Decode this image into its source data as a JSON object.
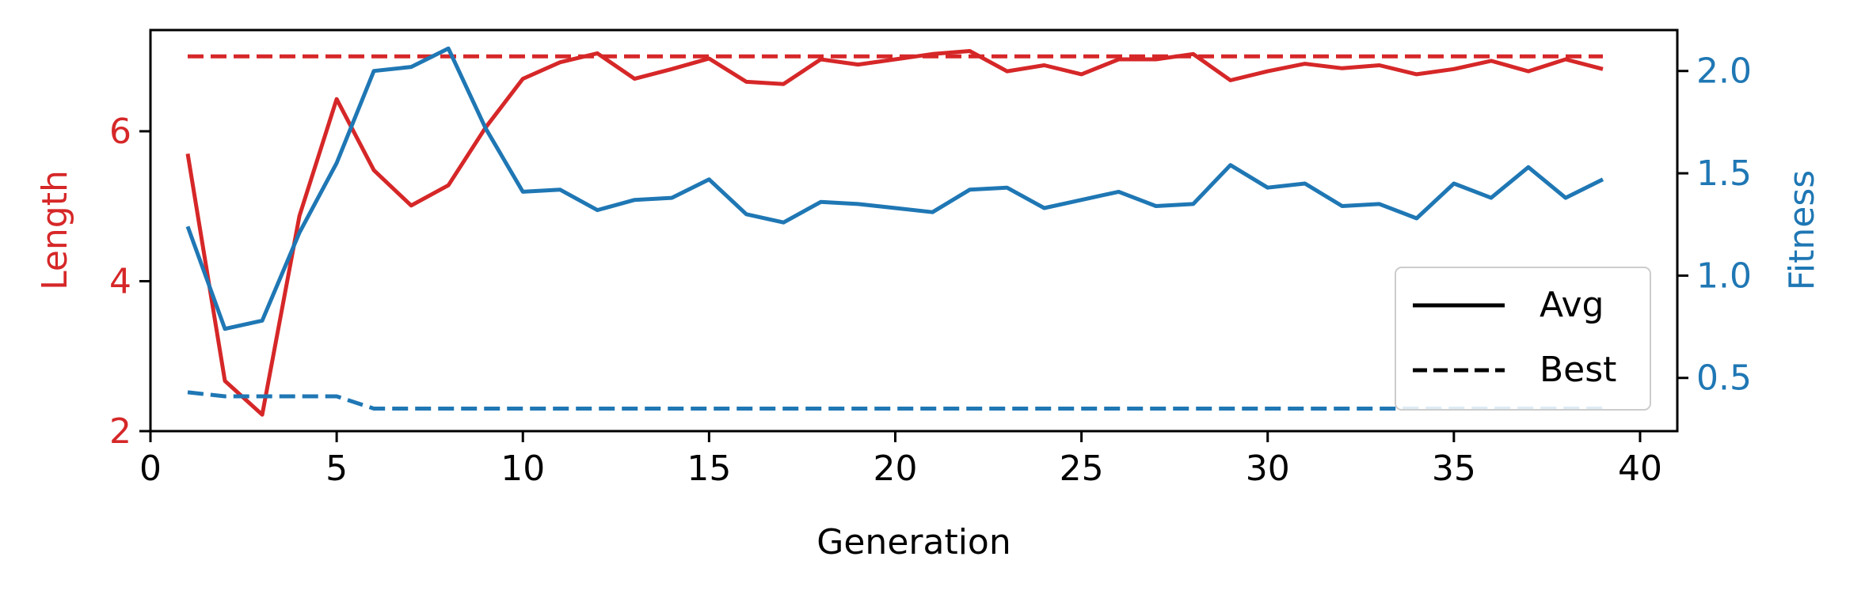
{
  "chart_data": {
    "type": "line",
    "xlabel": "Generation",
    "ylabel_left": "Length",
    "ylabel_right": "Fitness",
    "xlim": [
      0,
      41
    ],
    "ylim_left": [
      2,
      7.35
    ],
    "ylim_right": [
      0.24,
      2.2
    ],
    "xticks": [
      0,
      5,
      10,
      15,
      20,
      25,
      30,
      35,
      40
    ],
    "yticks_left": [
      2,
      4,
      6
    ],
    "yticks_right": [
      0.5,
      1.0,
      1.5,
      2.0
    ],
    "xtick_labels": [
      "0",
      "5",
      "10",
      "15",
      "20",
      "25",
      "30",
      "35",
      "40"
    ],
    "ytick_labels_left": [
      "2",
      "4",
      "6"
    ],
    "ytick_labels_right": [
      "0.5",
      "1.0",
      "1.5",
      "2.0"
    ],
    "grid": false,
    "legend": {
      "position": "center-right",
      "entries": [
        {
          "label": "Avg",
          "style": "solid"
        },
        {
          "label": "Best",
          "style": "dashed"
        }
      ]
    },
    "colors": {
      "length": "#d62728",
      "fitness": "#1f77b4",
      "legend": "#000000"
    },
    "x": [
      1,
      2,
      3,
      4,
      5,
      6,
      7,
      8,
      9,
      10,
      11,
      12,
      13,
      14,
      15,
      16,
      17,
      18,
      19,
      20,
      21,
      22,
      23,
      24,
      25,
      26,
      27,
      28,
      29,
      30,
      31,
      32,
      33,
      34,
      35,
      36,
      37,
      38,
      39
    ],
    "series": [
      {
        "axis": "left",
        "style": "solid",
        "values": [
          5.7,
          2.67,
          2.22,
          4.87,
          6.43,
          5.48,
          5.01,
          5.28,
          6.05,
          6.7,
          6.92,
          7.04,
          6.7,
          6.83,
          6.97,
          6.66,
          6.63,
          6.96,
          6.89,
          6.96,
          7.03,
          7.07,
          6.8,
          6.88,
          6.76,
          6.96,
          6.96,
          7.03,
          6.68,
          6.8,
          6.9,
          6.84,
          6.88,
          6.76,
          6.83,
          6.94,
          6.8,
          6.96,
          6.83
        ]
      },
      {
        "axis": "left",
        "style": "dashed",
        "values": [
          7.0,
          7.0,
          7.0,
          7.0,
          7.0,
          7.0,
          7.0,
          7.0,
          7.0,
          7.0,
          7.0,
          7.0,
          7.0,
          7.0,
          7.0,
          7.0,
          7.0,
          7.0,
          7.0,
          7.0,
          7.0,
          7.0,
          7.0,
          7.0,
          7.0,
          7.0,
          7.0,
          7.0,
          7.0,
          7.0,
          7.0,
          7.0,
          7.0,
          7.0,
          7.0,
          7.0,
          7.0,
          7.0,
          7.0
        ]
      },
      {
        "axis": "right",
        "style": "solid",
        "values": [
          1.24,
          0.74,
          0.78,
          1.21,
          1.55,
          2.0,
          2.02,
          2.11,
          1.72,
          1.41,
          1.42,
          1.32,
          1.37,
          1.38,
          1.47,
          1.3,
          1.26,
          1.36,
          1.35,
          1.33,
          1.31,
          1.42,
          1.43,
          1.33,
          1.37,
          1.41,
          1.34,
          1.35,
          1.54,
          1.43,
          1.45,
          1.34,
          1.35,
          1.28,
          1.45,
          1.38,
          1.53,
          1.38,
          1.47
        ]
      },
      {
        "axis": "right",
        "style": "dashed",
        "values": [
          0.43,
          0.41,
          0.41,
          0.41,
          0.41,
          0.35,
          0.35,
          0.35,
          0.35,
          0.35,
          0.35,
          0.35,
          0.35,
          0.35,
          0.35,
          0.35,
          0.35,
          0.35,
          0.35,
          0.35,
          0.35,
          0.35,
          0.35,
          0.35,
          0.35,
          0.35,
          0.35,
          0.35,
          0.35,
          0.35,
          0.35,
          0.35,
          0.35,
          0.35,
          0.35,
          0.35,
          0.35,
          0.35,
          0.35
        ]
      }
    ]
  }
}
